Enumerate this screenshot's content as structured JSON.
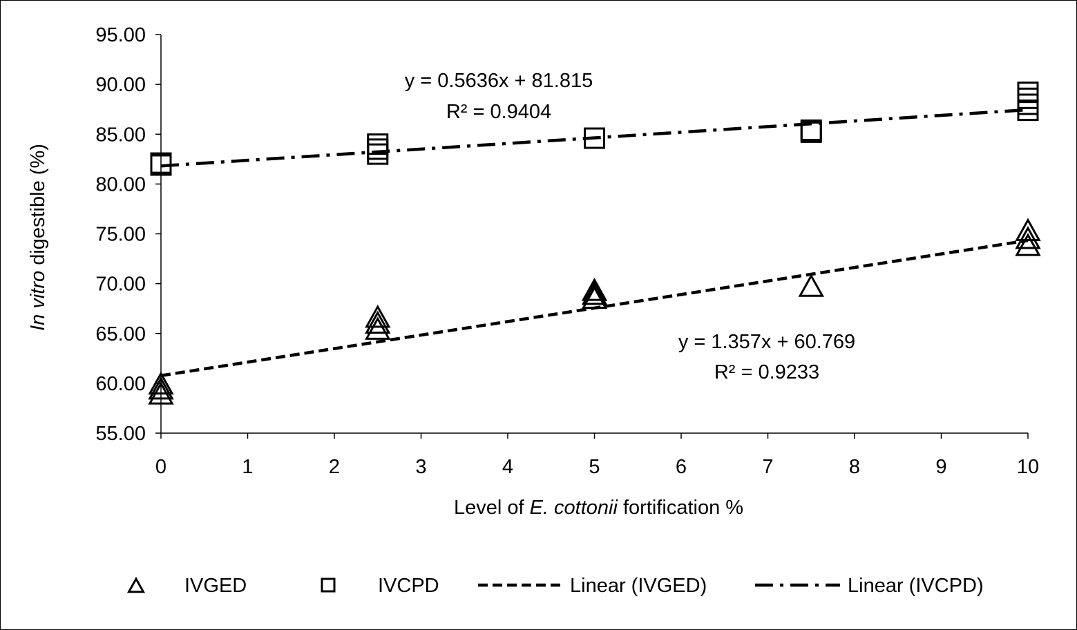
{
  "chart_data": {
    "type": "scatter",
    "xlabel": {
      "prefix": "Level of ",
      "italic": "E. cottonii",
      "suffix": " fortification %"
    },
    "ylabel": {
      "italic": "In vitro",
      "suffix": " digestible (%)"
    },
    "xlim": [
      0,
      10
    ],
    "ylim": [
      55,
      95
    ],
    "x_ticks": [
      "0",
      "1",
      "2",
      "3",
      "4",
      "5",
      "6",
      "7",
      "8",
      "9",
      "10"
    ],
    "y_ticks": [
      "55.00",
      "60.00",
      "65.00",
      "70.00",
      "75.00",
      "80.00",
      "85.00",
      "90.00",
      "95.00"
    ],
    "series": [
      {
        "name": "IVGED",
        "marker": "triangle",
        "points": [
          [
            0,
            58.8
          ],
          [
            0,
            59.3
          ],
          [
            0,
            59.8
          ],
          [
            2.5,
            65.3
          ],
          [
            2.5,
            65.9
          ],
          [
            2.5,
            66.5
          ],
          [
            5,
            68.4
          ],
          [
            5,
            68.8
          ],
          [
            5,
            69.2
          ],
          [
            7.5,
            69.6
          ],
          [
            10,
            73.7
          ],
          [
            10,
            74.4
          ],
          [
            10,
            75.2
          ]
        ]
      },
      {
        "name": "IVCPD",
        "marker": "square",
        "points": [
          [
            0,
            81.9
          ],
          [
            0,
            82.1
          ],
          [
            2.5,
            83.0
          ],
          [
            2.5,
            83.5
          ],
          [
            2.5,
            84.0
          ],
          [
            5,
            84.6
          ],
          [
            7.5,
            85.2
          ],
          [
            7.5,
            85.4
          ],
          [
            10,
            87.4
          ],
          [
            10,
            88.0
          ],
          [
            10,
            88.6
          ],
          [
            10,
            89.2
          ]
        ]
      }
    ],
    "trendlines": [
      {
        "name": "Linear (IVGED)",
        "slope": 1.357,
        "intercept": 60.769,
        "equation": "y = 1.357x + 60.769",
        "r2": "R² = 0.9233",
        "style": "dashed"
      },
      {
        "name": "Linear (IVCPD)",
        "slope": 0.5636,
        "intercept": 81.815,
        "equation": "y = 0.5636x + 81.815",
        "r2": "R² = 0.9404",
        "style": "dash-dot"
      }
    ],
    "legend_position": "bottom",
    "grid": false
  }
}
